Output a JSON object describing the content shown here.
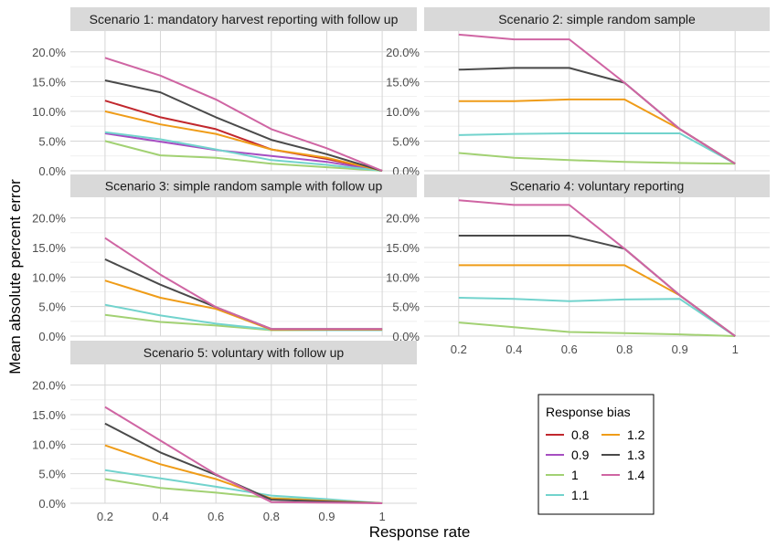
{
  "chart_data": {
    "type": "line",
    "ylabel": "Mean absolute percent error",
    "xlabel": "Response rate",
    "categories": [
      "0.2",
      "0.4",
      "0.6",
      "0.8",
      "0.9",
      "1"
    ],
    "yticks": [
      "0.0%",
      "5.0%",
      "10.0%",
      "15.0%",
      "20.0%"
    ],
    "ylim": [
      0,
      23.5
    ],
    "grid": true,
    "legend": {
      "title": "Response bias",
      "placement": "bottom-right",
      "items": [
        {
          "label": "0.8",
          "color": "#c1272d"
        },
        {
          "label": "0.9",
          "color": "#a64ec2"
        },
        {
          "label": "1",
          "color": "#a2d173"
        },
        {
          "label": "1.1",
          "color": "#72d3cd"
        },
        {
          "label": "1.2",
          "color": "#ef9c18"
        },
        {
          "label": "1.3",
          "color": "#4a4a4a"
        },
        {
          "label": "1.4",
          "color": "#cf65a3"
        }
      ]
    },
    "panels": [
      {
        "title": "Scenario 1: mandatory harvest reporting with follow up",
        "series": [
          {
            "name": "0.8",
            "values": [
              11.8,
              9.0,
              7.0,
              3.6,
              2.0,
              0.0
            ]
          },
          {
            "name": "0.9",
            "values": [
              6.3,
              4.9,
              3.5,
              2.5,
              1.5,
              0.0
            ]
          },
          {
            "name": "1",
            "values": [
              5.0,
              2.6,
              2.2,
              1.2,
              0.6,
              0.0
            ]
          },
          {
            "name": "1.1",
            "values": [
              6.5,
              5.3,
              3.6,
              1.8,
              1.0,
              0.0
            ]
          },
          {
            "name": "1.2",
            "values": [
              10.0,
              7.8,
              6.2,
              3.6,
              2.2,
              0.0
            ]
          },
          {
            "name": "1.3",
            "values": [
              15.2,
              13.2,
              9.0,
              5.2,
              2.8,
              0.0
            ]
          },
          {
            "name": "1.4",
            "values": [
              19.0,
              16.0,
              12.0,
              7.0,
              3.8,
              0.0
            ]
          }
        ]
      },
      {
        "title": "Scenario 2: simple random sample",
        "series": [
          {
            "name": "1",
            "values": [
              3.0,
              2.2,
              1.8,
              1.5,
              1.3,
              1.2
            ]
          },
          {
            "name": "1.1",
            "values": [
              6.0,
              6.2,
              6.3,
              6.3,
              6.3,
              1.2
            ]
          },
          {
            "name": "1.2",
            "values": [
              11.7,
              11.7,
              12.0,
              12.0,
              7.0,
              1.2
            ]
          },
          {
            "name": "1.3",
            "values": [
              17.0,
              17.3,
              17.3,
              14.8,
              7.0,
              1.2
            ]
          },
          {
            "name": "1.4",
            "values": [
              22.9,
              22.1,
              22.1,
              14.8,
              7.0,
              1.2
            ]
          }
        ]
      },
      {
        "title": "Scenario 3: simple random sample with follow up",
        "series": [
          {
            "name": "1",
            "values": [
              3.6,
              2.4,
              1.8,
              1.0,
              1.0,
              1.0
            ]
          },
          {
            "name": "1.1",
            "values": [
              5.3,
              3.5,
              2.1,
              1.1,
              1.0,
              1.0
            ]
          },
          {
            "name": "1.2",
            "values": [
              9.4,
              6.5,
              4.6,
              1.1,
              1.1,
              1.1
            ]
          },
          {
            "name": "1.3",
            "values": [
              13.0,
              8.7,
              4.9,
              1.2,
              1.2,
              1.2
            ]
          },
          {
            "name": "1.4",
            "values": [
              16.6,
              10.4,
              4.9,
              1.2,
              1.2,
              1.2
            ]
          }
        ]
      },
      {
        "title": "Scenario 4: voluntary reporting",
        "series": [
          {
            "name": "1",
            "values": [
              2.3,
              1.5,
              0.7,
              0.5,
              0.3,
              0.0
            ]
          },
          {
            "name": "1.1",
            "values": [
              6.5,
              6.3,
              5.9,
              6.2,
              6.3,
              0.0
            ]
          },
          {
            "name": "1.2",
            "values": [
              12.0,
              12.0,
              12.0,
              12.0,
              6.9,
              0.0
            ]
          },
          {
            "name": "1.3",
            "values": [
              17.0,
              17.0,
              17.0,
              14.8,
              6.9,
              0.0
            ]
          },
          {
            "name": "1.4",
            "values": [
              23.0,
              22.2,
              22.2,
              14.8,
              6.9,
              0.0
            ]
          }
        ]
      },
      {
        "title": "Scenario 5: voluntary with follow up",
        "series": [
          {
            "name": "1",
            "values": [
              4.1,
              2.6,
              1.8,
              0.9,
              0.5,
              0.0
            ]
          },
          {
            "name": "1.1",
            "values": [
              5.6,
              4.2,
              2.8,
              1.3,
              0.7,
              0.0
            ]
          },
          {
            "name": "1.2",
            "values": [
              9.8,
              6.6,
              4.1,
              0.8,
              0.4,
              0.0
            ]
          },
          {
            "name": "1.3",
            "values": [
              13.5,
              8.6,
              4.8,
              0.6,
              0.3,
              0.0
            ]
          },
          {
            "name": "1.4",
            "values": [
              16.3,
              10.6,
              4.9,
              0.2,
              0.1,
              0.0
            ]
          }
        ]
      }
    ]
  }
}
